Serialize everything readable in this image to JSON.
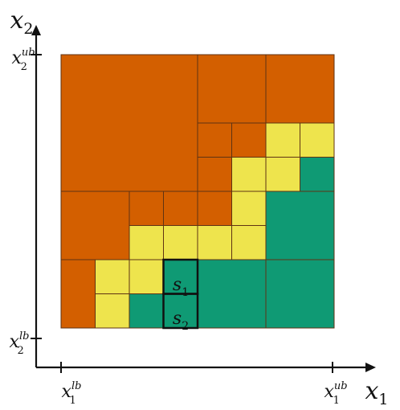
{
  "labels": {
    "x_axis_main": "x",
    "x_axis_sub": "1",
    "y_axis_main": "x",
    "y_axis_sub": "2",
    "x_lb_main": "x",
    "x_lb_sup": "lb",
    "x_lb_sub": "1",
    "x_ub_main": "x",
    "x_ub_sup": "ub",
    "x_ub_sub": "1",
    "y_lb_main": "x",
    "y_lb_sup": "lb",
    "y_lb_sub": "2",
    "y_ub_main": "x",
    "y_ub_sup": "ub",
    "y_ub_sub": "2",
    "s1_main": "s",
    "s1_sub": "1",
    "s2_main": "s",
    "s2_sub": "2"
  },
  "colors": {
    "infeasible": "#d35f00",
    "boundary": "#eee44d",
    "feasible": "#0f9a74",
    "grid": "#5f3313",
    "highlight": "#111111",
    "axis": "#111111"
  },
  "regions": [
    {
      "kind": "infeasible",
      "cols": [
        0,
        8
      ],
      "rows": [
        4,
        8
      ]
    },
    {
      "kind": "infeasible",
      "cols": [
        0,
        2
      ],
      "rows": [
        2,
        4
      ]
    },
    {
      "kind": "infeasible",
      "cols": [
        0,
        1
      ],
      "rows": [
        0,
        2
      ]
    },
    {
      "kind": "infeasible",
      "cols": [
        2,
        3
      ],
      "rows": [
        3,
        4
      ]
    },
    {
      "kind": "infeasible",
      "cols": [
        3,
        4
      ],
      "rows": [
        3,
        4
      ]
    },
    {
      "kind": "infeasible",
      "cols": [
        4,
        5
      ],
      "rows": [
        3,
        4
      ]
    },
    {
      "kind": "infeasible",
      "cols": [
        4,
        5
      ],
      "rows": [
        4,
        5
      ]
    },
    {
      "kind": "infeasible",
      "cols": [
        4,
        5
      ],
      "rows": [
        5,
        6
      ]
    },
    {
      "kind": "infeasible",
      "cols": [
        5,
        6
      ],
      "rows": [
        5,
        6
      ]
    },
    {
      "kind": "infeasible",
      "cols": [
        4,
        6
      ],
      "rows": [
        6,
        8
      ]
    },
    {
      "kind": "infeasible",
      "cols": [
        6,
        8
      ],
      "rows": [
        6,
        8
      ]
    },
    {
      "kind": "boundary",
      "cols": [
        1,
        2
      ],
      "rows": [
        0,
        1
      ]
    },
    {
      "kind": "boundary",
      "cols": [
        1,
        2
      ],
      "rows": [
        1,
        2
      ]
    },
    {
      "kind": "boundary",
      "cols": [
        2,
        3
      ],
      "rows": [
        1,
        2
      ]
    },
    {
      "kind": "boundary",
      "cols": [
        2,
        3
      ],
      "rows": [
        2,
        3
      ]
    },
    {
      "kind": "boundary",
      "cols": [
        3,
        4
      ],
      "rows": [
        2,
        3
      ]
    },
    {
      "kind": "boundary",
      "cols": [
        4,
        5
      ],
      "rows": [
        2,
        3
      ]
    },
    {
      "kind": "boundary",
      "cols": [
        5,
        6
      ],
      "rows": [
        2,
        3
      ]
    },
    {
      "kind": "boundary",
      "cols": [
        5,
        6
      ],
      "rows": [
        3,
        4
      ]
    },
    {
      "kind": "boundary",
      "cols": [
        5,
        6
      ],
      "rows": [
        4,
        5
      ]
    },
    {
      "kind": "boundary",
      "cols": [
        6,
        7
      ],
      "rows": [
        4,
        5
      ]
    },
    {
      "kind": "boundary",
      "cols": [
        6,
        7
      ],
      "rows": [
        5,
        6
      ]
    },
    {
      "kind": "boundary",
      "cols": [
        7,
        8
      ],
      "rows": [
        5,
        6
      ]
    },
    {
      "kind": "feasible",
      "cols": [
        2,
        3
      ],
      "rows": [
        0,
        1
      ]
    },
    {
      "kind": "feasible",
      "cols": [
        3,
        4
      ],
      "rows": [
        0,
        1
      ]
    },
    {
      "kind": "feasible",
      "cols": [
        3,
        4
      ],
      "rows": [
        1,
        2
      ]
    },
    {
      "kind": "feasible",
      "cols": [
        4,
        6
      ],
      "rows": [
        0,
        2
      ]
    },
    {
      "kind": "feasible",
      "cols": [
        6,
        8
      ],
      "rows": [
        0,
        2
      ]
    },
    {
      "kind": "feasible",
      "cols": [
        6,
        8
      ],
      "rows": [
        2,
        4
      ]
    },
    {
      "kind": "feasible",
      "cols": [
        7,
        8
      ],
      "rows": [
        4,
        5
      ]
    }
  ],
  "highlighted_cells": [
    {
      "label": "s1",
      "cols": [
        3,
        4
      ],
      "rows": [
        1,
        2
      ]
    },
    {
      "label": "s2",
      "cols": [
        3,
        4
      ],
      "rows": [
        0,
        1
      ]
    }
  ],
  "grid_divisions": 8
}
